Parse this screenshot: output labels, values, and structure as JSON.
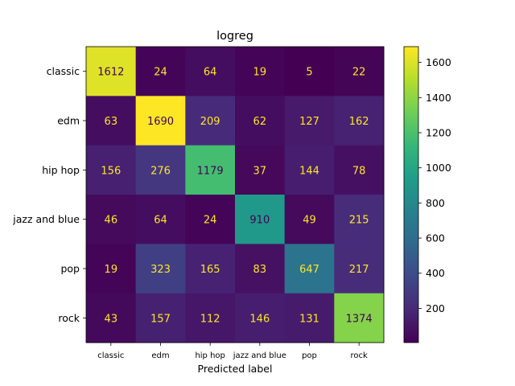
{
  "chart_data": {
    "type": "heatmap",
    "title": "logreg",
    "xlabel": "Predicted label",
    "ylabel": "",
    "x_categories": [
      "classic",
      "edm",
      "hip hop",
      "jazz and blue",
      "pop",
      "rock"
    ],
    "y_categories": [
      "classic",
      "edm",
      "hip hop",
      "jazz and blue",
      "pop",
      "rock"
    ],
    "values": [
      [
        1612,
        24,
        64,
        19,
        5,
        22
      ],
      [
        63,
        1690,
        209,
        62,
        127,
        162
      ],
      [
        156,
        276,
        1179,
        37,
        144,
        78
      ],
      [
        46,
        64,
        24,
        910,
        49,
        215
      ],
      [
        19,
        323,
        165,
        83,
        647,
        217
      ],
      [
        43,
        157,
        112,
        146,
        131,
        1374
      ]
    ],
    "colormap": "viridis",
    "color_range": [
      5,
      1690
    ],
    "colorbar_ticks": [
      200,
      400,
      600,
      800,
      1000,
      1200,
      1400,
      1600
    ],
    "grid": false,
    "text_colors": {
      "light": "#fde725",
      "dark": "#440154"
    }
  }
}
